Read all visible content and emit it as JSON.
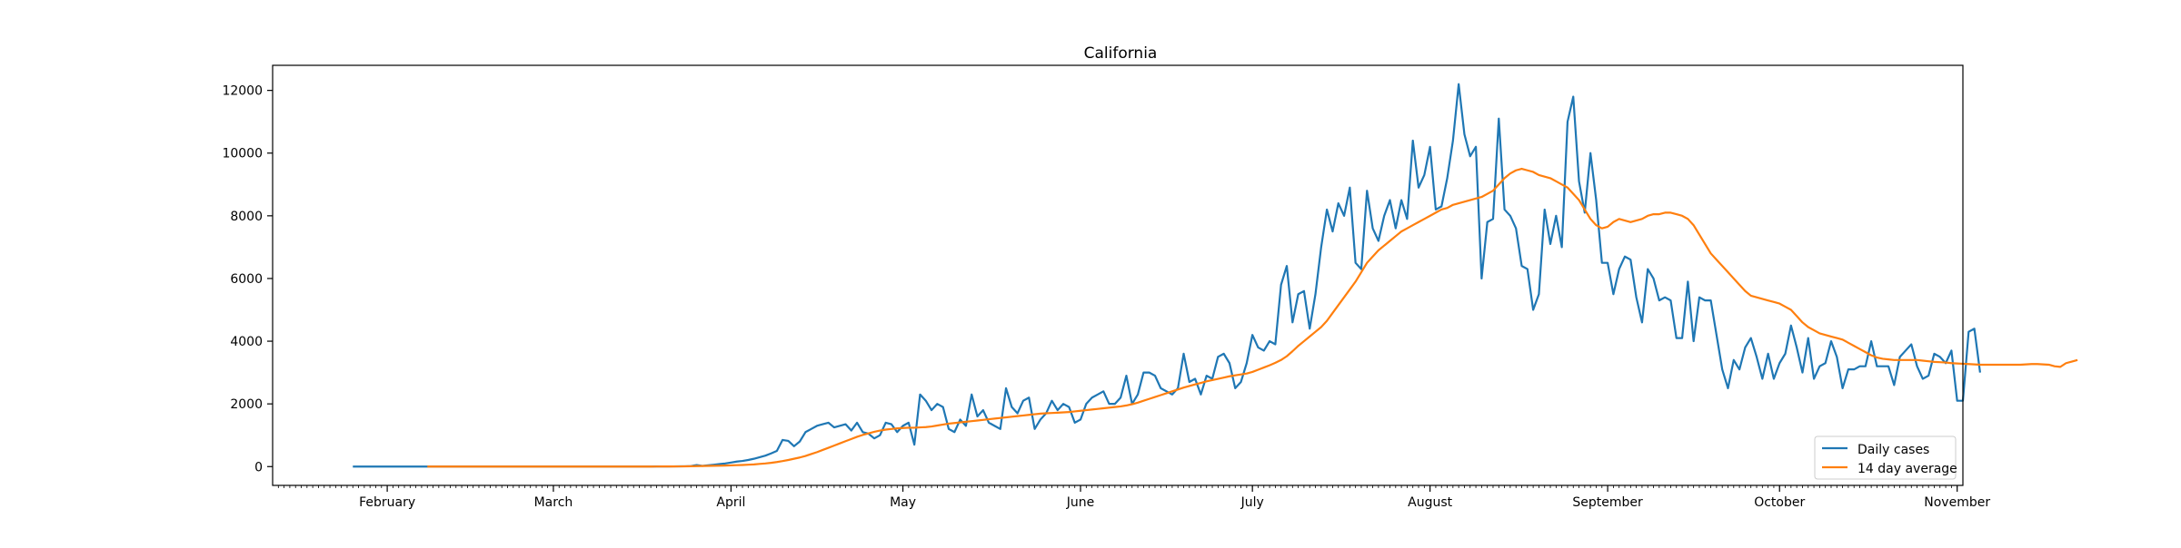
{
  "chart_data": {
    "type": "line",
    "title": "California",
    "xlabel": "",
    "ylabel": "",
    "x_start": "2020-01-26",
    "xlim": [
      "2020-01-12",
      "2020-11-02"
    ],
    "ylim": [
      -600,
      12800
    ],
    "yticks": [
      0,
      2000,
      4000,
      6000,
      8000,
      10000,
      12000
    ],
    "xticks": [
      {
        "date": "2020-02-01",
        "label": "February"
      },
      {
        "date": "2020-03-01",
        "label": "March"
      },
      {
        "date": "2020-04-01",
        "label": "April"
      },
      {
        "date": "2020-05-01",
        "label": "May"
      },
      {
        "date": "2020-06-01",
        "label": "June"
      },
      {
        "date": "2020-07-01",
        "label": "July"
      },
      {
        "date": "2020-08-01",
        "label": "August"
      },
      {
        "date": "2020-09-01",
        "label": "September"
      },
      {
        "date": "2020-10-01",
        "label": "October"
      },
      {
        "date": "2020-11-01",
        "label": "November"
      }
    ],
    "grid": false,
    "legend_position": "lower-right",
    "series": [
      {
        "name": "Daily cases",
        "color": "#1f77b4",
        "values": [
          0,
          0,
          0,
          0,
          0,
          0,
          0,
          0,
          0,
          0,
          0,
          0,
          0,
          0,
          0,
          0,
          0,
          0,
          0,
          0,
          0,
          0,
          0,
          0,
          0,
          0,
          0,
          0,
          0,
          0,
          0,
          0,
          0,
          0,
          0,
          0,
          0,
          0,
          0,
          0,
          0,
          0,
          0,
          0,
          0,
          0,
          0,
          0,
          0,
          0,
          0,
          0,
          0,
          5,
          3,
          4,
          6,
          8,
          10,
          15,
          50,
          22,
          40,
          60,
          80,
          100,
          130,
          160,
          180,
          210,
          250,
          300,
          350,
          420,
          500,
          850,
          820,
          650,
          800,
          1100,
          1200,
          1300,
          1350,
          1400,
          1250,
          1300,
          1350,
          1150,
          1400,
          1100,
          1050,
          900,
          1000,
          1400,
          1350,
          1100,
          1300,
          1400,
          700,
          2300,
          2100,
          1800,
          2000,
          1900,
          1200,
          1100,
          1500,
          1300,
          2300,
          1600,
          1800,
          1400,
          1300,
          1200,
          2500,
          1900,
          1700,
          2100,
          2200,
          1200,
          1500,
          1700,
          2100,
          1800,
          2000,
          1900,
          1400,
          1500,
          2000,
          2200,
          2300,
          2400,
          2000,
          2000,
          2200,
          2900,
          2000,
          2300,
          3000,
          3000,
          2900,
          2500,
          2400,
          2300,
          2500,
          3600,
          2700,
          2800,
          2300,
          2900,
          2800,
          3500,
          3600,
          3300,
          2500,
          2700,
          3300,
          4200,
          3800,
          3700,
          4000,
          3900,
          5800,
          6400,
          4600,
          5500,
          5600,
          4400,
          5500,
          7000,
          8200,
          7500,
          8400,
          8000,
          8900,
          6500,
          6300,
          8800,
          7600,
          7200,
          8000,
          8500,
          7600,
          8500,
          7900,
          10400,
          8900,
          9300,
          10200,
          8200,
          8300,
          9200,
          10400,
          12200,
          10600,
          9900,
          10200,
          6000,
          7800,
          7900,
          11100,
          8200,
          8000,
          7600,
          6400,
          6300,
          5000,
          5500,
          8200,
          7100,
          8000,
          7000,
          11000,
          11800,
          9100,
          8100,
          10000,
          8500,
          6500,
          6500,
          5500,
          6300,
          6700,
          6600,
          5400,
          4600,
          6300,
          6000,
          5300,
          5400,
          5300,
          4100,
          4100,
          5900,
          4000,
          5400,
          5300,
          5300,
          4200,
          3100,
          2500,
          3400,
          3100,
          3800,
          4100,
          3500,
          2800,
          3600,
          2800,
          3300,
          3600,
          4500,
          3800,
          3000,
          4100,
          2800,
          3200,
          3300,
          4000,
          3500,
          2500,
          3100,
          3100,
          3200,
          3200,
          4000,
          3200,
          3200,
          3200,
          2600,
          3500,
          3700,
          3900,
          3200,
          2800,
          2900,
          3600,
          3500,
          3300,
          3700,
          2100,
          2100,
          4300,
          4400,
          3000
        ]
      },
      {
        "name": "14 day average",
        "color": "#ff7f0e",
        "values": [
          null,
          null,
          null,
          null,
          null,
          null,
          null,
          null,
          null,
          null,
          null,
          null,
          null,
          0,
          0,
          0,
          0,
          0,
          0,
          0,
          0,
          0,
          0,
          0,
          0,
          0,
          0,
          0,
          0,
          0,
          0,
          0,
          0,
          0,
          0,
          0,
          0,
          0,
          0,
          0,
          0,
          0,
          0,
          0,
          0,
          0,
          0,
          0,
          0,
          0,
          0,
          0,
          0,
          2,
          3,
          4,
          5,
          6,
          8,
          11,
          15,
          18,
          22,
          25,
          28,
          32,
          38,
          45,
          52,
          60,
          70,
          85,
          100,
          120,
          145,
          175,
          210,
          250,
          290,
          340,
          400,
          460,
          530,
          600,
          670,
          740,
          810,
          880,
          950,
          1010,
          1060,
          1110,
          1150,
          1180,
          1200,
          1220,
          1230,
          1240,
          1240,
          1250,
          1260,
          1280,
          1310,
          1340,
          1370,
          1390,
          1410,
          1430,
          1450,
          1470,
          1490,
          1510,
          1530,
          1550,
          1570,
          1590,
          1610,
          1630,
          1650,
          1670,
          1690,
          1700,
          1710,
          1720,
          1730,
          1740,
          1760,
          1780,
          1800,
          1820,
          1840,
          1860,
          1880,
          1900,
          1920,
          1950,
          1990,
          2040,
          2100,
          2160,
          2220,
          2280,
          2340,
          2400,
          2460,
          2520,
          2570,
          2620,
          2670,
          2720,
          2760,
          2800,
          2840,
          2880,
          2910,
          2940,
          2970,
          3020,
          3090,
          3160,
          3230,
          3310,
          3400,
          3520,
          3680,
          3850,
          4000,
          4150,
          4300,
          4450,
          4650,
          4900,
          5150,
          5400,
          5650,
          5900,
          6200,
          6500,
          6700,
          6900,
          7050,
          7200,
          7350,
          7500,
          7600,
          7700,
          7800,
          7900,
          8000,
          8100,
          8200,
          8250,
          8350,
          8400,
          8450,
          8500,
          8550,
          8600,
          8700,
          8800,
          9000,
          9200,
          9350,
          9450,
          9500,
          9450,
          9400,
          9300,
          9250,
          9200,
          9100,
          9000,
          8900,
          8700,
          8500,
          8200,
          7900,
          7700,
          7600,
          7650,
          7800,
          7900,
          7850,
          7800,
          7850,
          7900,
          8000,
          8050,
          8050,
          8100,
          8100,
          8050,
          8000,
          7900,
          7700,
          7400,
          7100,
          6800,
          6600,
          6400,
          6200,
          6000,
          5800,
          5600,
          5450,
          5400,
          5350,
          5300,
          5250,
          5200,
          5100,
          5000,
          4800,
          4600,
          4450,
          4350,
          4250,
          4200,
          4150,
          4100,
          4050,
          3950,
          3850,
          3750,
          3650,
          3550,
          3480,
          3440,
          3420,
          3400,
          3400,
          3400,
          3400,
          3400,
          3380,
          3360,
          3340,
          3330,
          3320,
          3300,
          3290,
          3280,
          3270,
          3260,
          3250,
          3250,
          3250,
          3250,
          3250,
          3250,
          3250,
          3250,
          3260,
          3270,
          3270,
          3260,
          3250,
          3200,
          3180,
          3300,
          3350,
          3400
        ]
      }
    ]
  }
}
